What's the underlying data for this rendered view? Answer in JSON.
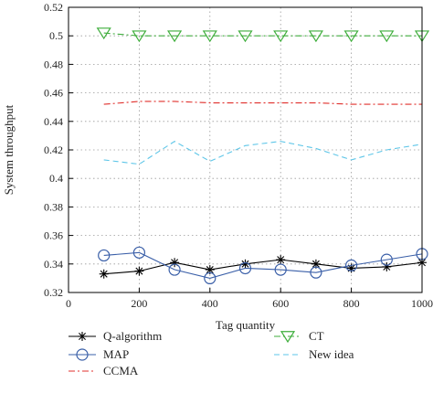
{
  "chart_data": {
    "type": "line",
    "xlabel": "Tag quantity",
    "ylabel": "System throughput",
    "xlim": [
      0,
      1000
    ],
    "ylim": [
      0.32,
      0.52
    ],
    "xticks": [
      0,
      200,
      400,
      600,
      800,
      1000
    ],
    "yticks": [
      0.32,
      0.34,
      0.36,
      0.38,
      0.4,
      0.42,
      0.44,
      0.46,
      0.48,
      0.5,
      0.52
    ],
    "ytick_labels": [
      "0.32",
      "0.34",
      "0.36",
      "0.38",
      "0.4",
      "0.42",
      "0.44",
      "0.46",
      "0.48",
      "0.5",
      "0.52"
    ],
    "grid": "dotted",
    "legend_position": "bottom",
    "series": [
      {
        "name": "Q-algorithm",
        "color": "#000000",
        "marker": "star",
        "dash": "solid",
        "x": [
          100,
          200,
          300,
          400,
          500,
          600,
          700,
          800,
          900,
          1000
        ],
        "y": [
          0.333,
          0.335,
          0.341,
          0.336,
          0.34,
          0.343,
          0.34,
          0.337,
          0.338,
          0.341
        ]
      },
      {
        "name": "MAP",
        "color": "#3a5fa8",
        "marker": "circle",
        "dash": "solid",
        "x": [
          100,
          200,
          300,
          400,
          500,
          600,
          700,
          800,
          900,
          1000
        ],
        "y": [
          0.346,
          0.348,
          0.336,
          0.33,
          0.337,
          0.336,
          0.334,
          0.339,
          0.343,
          0.347
        ]
      },
      {
        "name": "CCMA",
        "color": "#e0302c",
        "marker": "none",
        "dash": "dashdot",
        "x": [
          100,
          200,
          300,
          400,
          500,
          600,
          700,
          800,
          900,
          1000
        ],
        "y": [
          0.452,
          0.454,
          0.454,
          0.453,
          0.453,
          0.453,
          0.453,
          0.452,
          0.452,
          0.452
        ]
      },
      {
        "name": "CT",
        "color": "#3fae3c",
        "marker": "triangle-down",
        "dash": "dashdot",
        "x": [
          100,
          200,
          300,
          400,
          500,
          600,
          700,
          800,
          900,
          1000
        ],
        "y": [
          0.502,
          0.5,
          0.5,
          0.5,
          0.5,
          0.5,
          0.5,
          0.5,
          0.5,
          0.5
        ]
      },
      {
        "name": "New idea",
        "color": "#5ec6e8",
        "marker": "none",
        "dash": "dashed",
        "x": [
          100,
          200,
          300,
          400,
          500,
          600,
          700,
          800,
          900,
          1000
        ],
        "y": [
          0.413,
          0.41,
          0.426,
          0.412,
          0.423,
          0.426,
          0.421,
          0.413,
          0.42,
          0.424
        ]
      }
    ]
  }
}
